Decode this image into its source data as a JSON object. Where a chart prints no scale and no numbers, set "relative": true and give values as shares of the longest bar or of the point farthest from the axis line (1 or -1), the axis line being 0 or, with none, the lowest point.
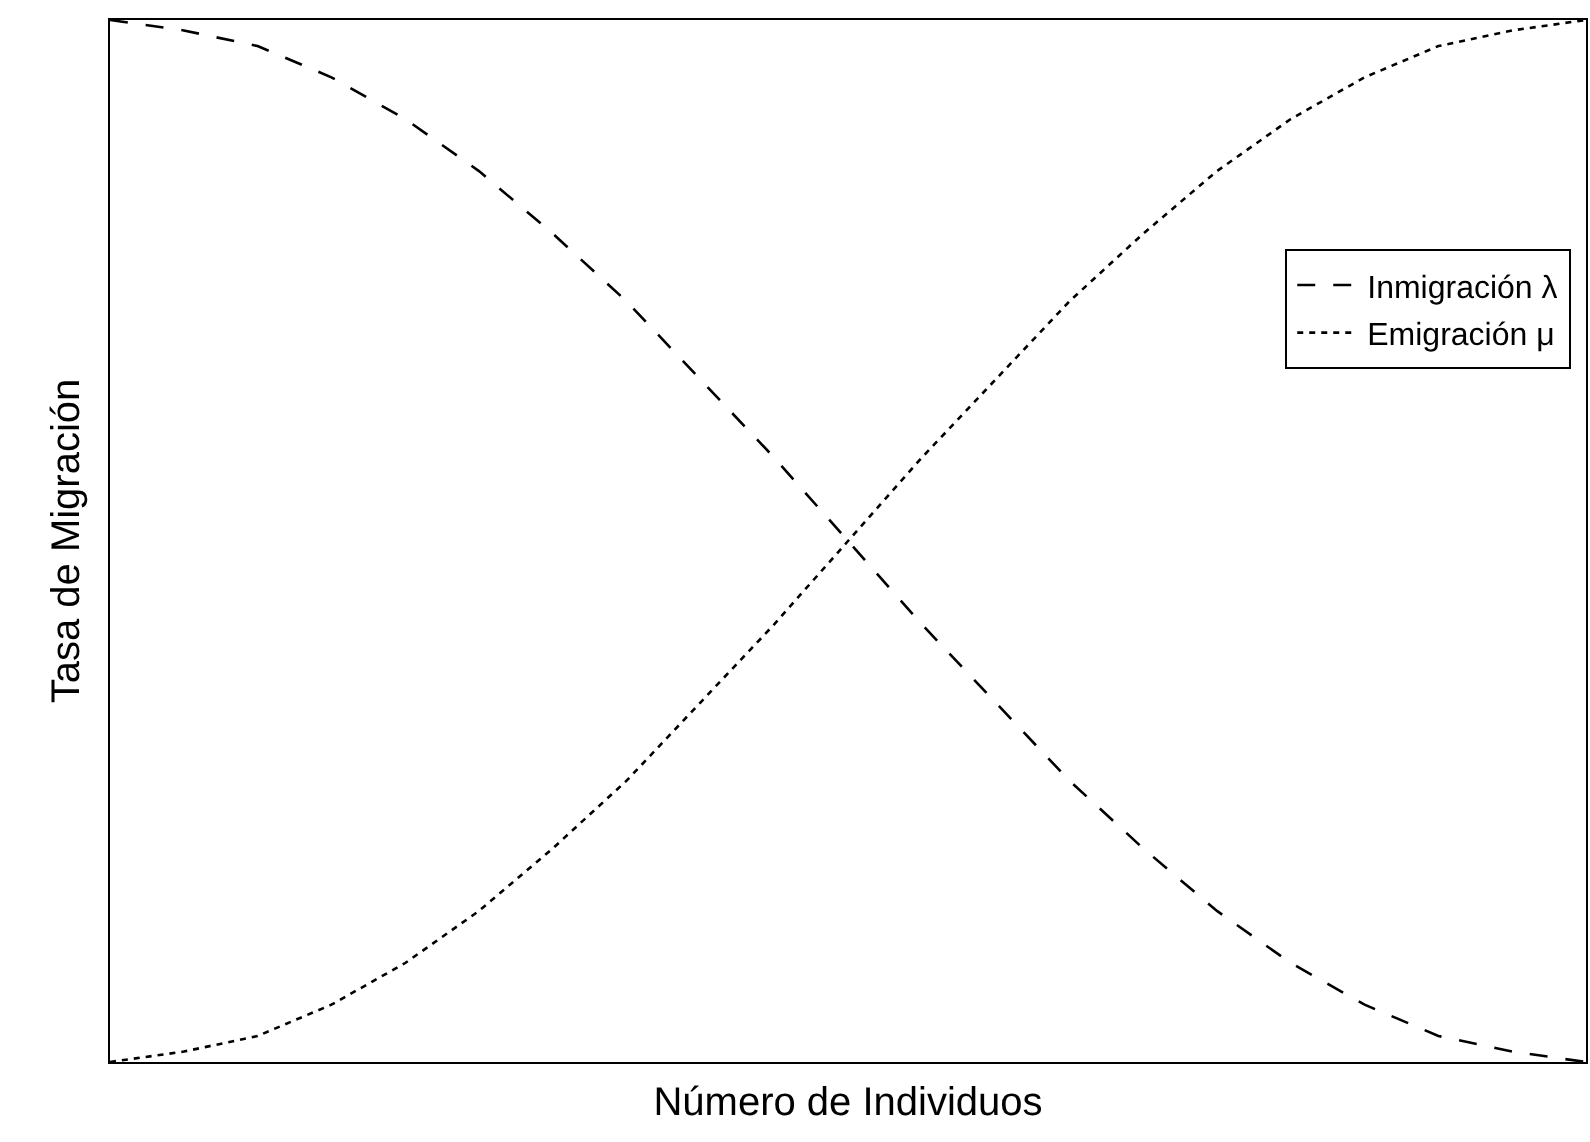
{
  "chart_data": {
    "type": "line",
    "relative": true,
    "xlabel": "Número de Individuos",
    "ylabel": "Tasa de Migración",
    "categories": [
      null,
      null,
      null,
      null,
      null,
      null,
      null,
      null,
      null,
      null,
      null,
      null,
      null,
      null,
      null,
      null,
      null,
      null,
      null,
      null,
      null
    ],
    "series": [
      {
        "name": "Inmigración λ",
        "color": "#000000",
        "line_style": "dashed",
        "values": [
          1,
          0.99,
          0.975,
          0.945,
          0.905,
          0.855,
          0.795,
          0.73,
          0.655,
          0.58,
          0.5,
          0.42,
          0.345,
          0.27,
          0.205,
          0.145,
          0.095,
          0.055,
          0.025,
          0.01,
          0
        ]
      },
      {
        "name": "Emigración μ",
        "color": "#000000",
        "line_style": "dotted",
        "values": [
          0,
          0.01,
          0.025,
          0.055,
          0.095,
          0.145,
          0.205,
          0.27,
          0.345,
          0.42,
          0.5,
          0.58,
          0.655,
          0.73,
          0.795,
          0.855,
          0.905,
          0.945,
          0.975,
          0.99,
          1
        ]
      }
    ],
    "marker": "none",
    "legend": "top right"
  }
}
